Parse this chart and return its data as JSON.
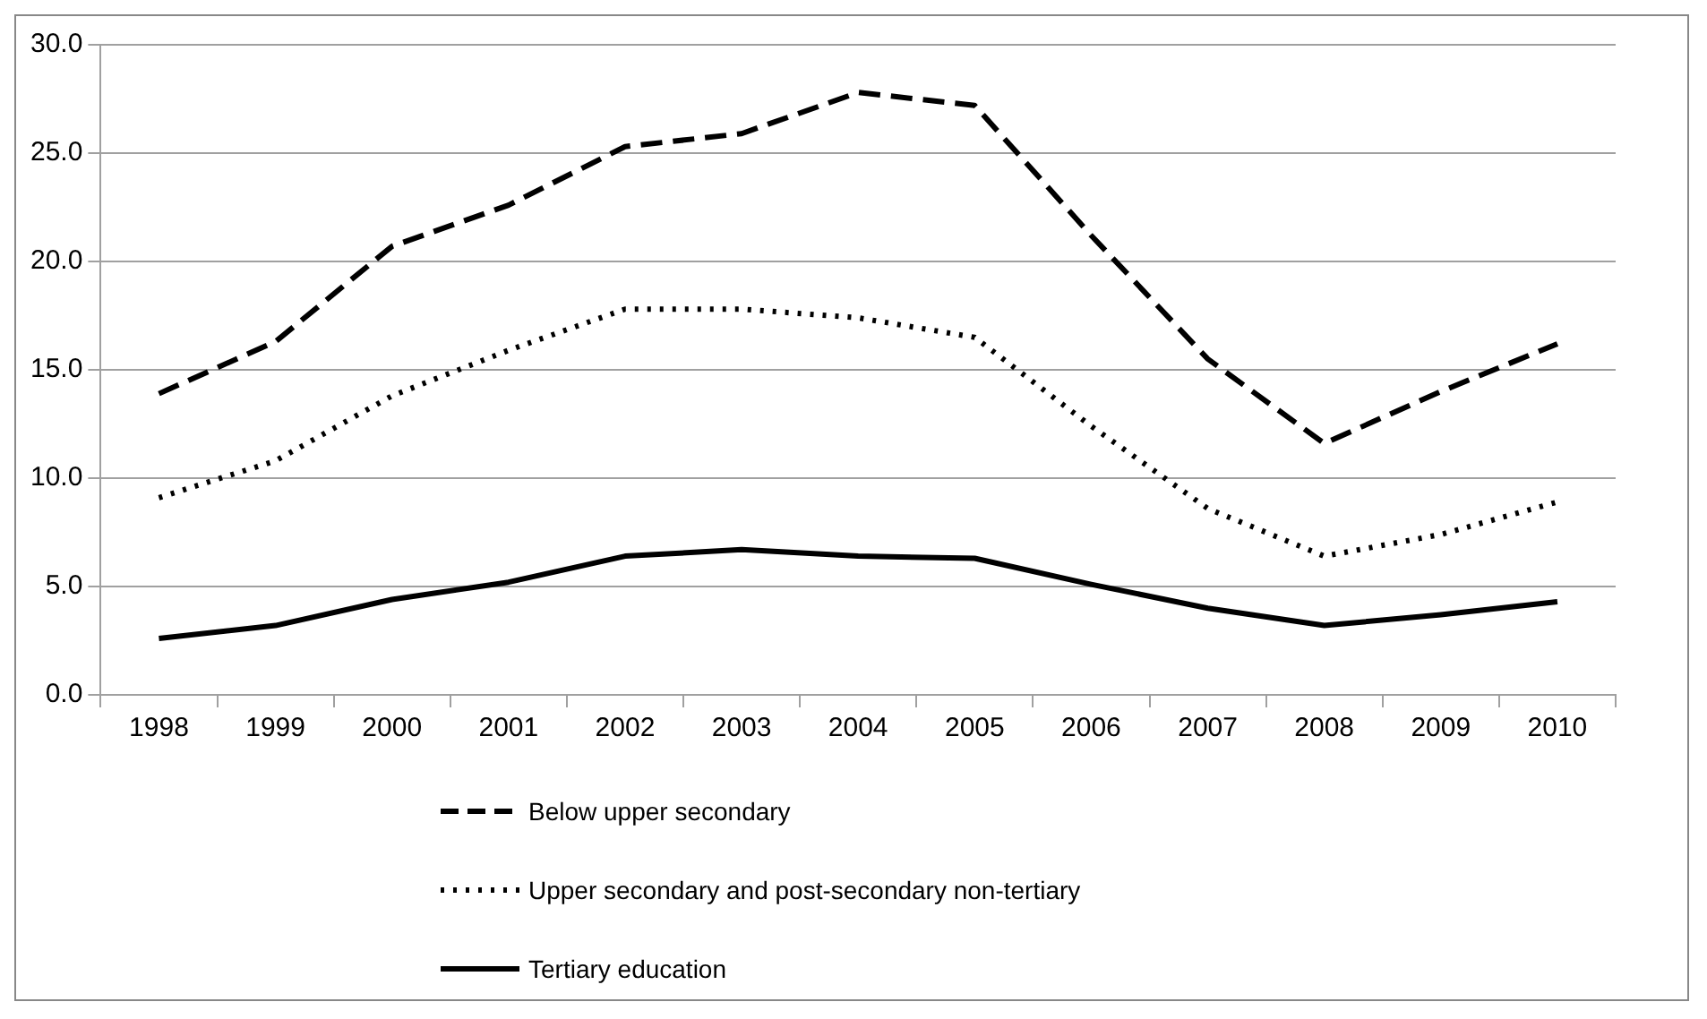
{
  "chart_data": {
    "type": "line",
    "categories": [
      "1998",
      "1999",
      "2000",
      "2001",
      "2002",
      "2003",
      "2004",
      "2005",
      "2006",
      "2007",
      "2008",
      "2009",
      "2010"
    ],
    "series": [
      {
        "name": "Below upper secondary",
        "color": "#000000",
        "line_style": "dashed",
        "values": [
          13.9,
          16.3,
          20.7,
          22.6,
          25.3,
          25.9,
          27.8,
          27.2,
          21.2,
          15.5,
          11.6,
          14.0,
          16.2
        ]
      },
      {
        "name": "Upper secondary and post-secondary non-tertiary",
        "color": "#000000",
        "line_style": "dotted",
        "values": [
          9.1,
          10.8,
          13.8,
          15.9,
          17.8,
          17.8,
          17.4,
          16.5,
          12.4,
          8.6,
          6.4,
          7.4,
          8.9
        ]
      },
      {
        "name": "Tertiary education",
        "color": "#000000",
        "line_style": "solid",
        "values": [
          2.6,
          3.2,
          4.4,
          5.2,
          6.4,
          6.7,
          6.4,
          6.3,
          5.1,
          4.0,
          3.2,
          3.7,
          4.3
        ]
      }
    ],
    "ylim": [
      0,
      30
    ],
    "yticks": [
      {
        "value": 0,
        "label": "0.0"
      },
      {
        "value": 5,
        "label": "5.0"
      },
      {
        "value": 10,
        "label": "10.0"
      },
      {
        "value": 15,
        "label": "15.0"
      },
      {
        "value": 20,
        "label": "20.0"
      },
      {
        "value": 25,
        "label": "25.0"
      },
      {
        "value": 30,
        "label": "30.0"
      }
    ],
    "grid": "y",
    "legend": "bottom",
    "marker": "none"
  }
}
